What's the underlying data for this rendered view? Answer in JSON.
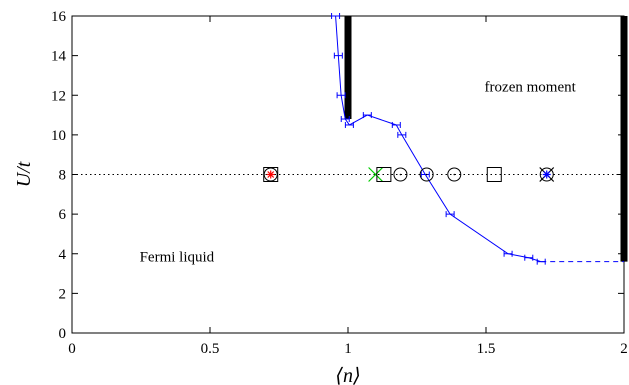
{
  "chart_data": {
    "type": "line",
    "xlabel": "⟨n⟩",
    "ylabel": "U/t",
    "xlim": [
      0,
      2
    ],
    "ylim": [
      0,
      16
    ],
    "xticks": [
      "0",
      "0.5",
      "1",
      "1.5",
      "2"
    ],
    "yticks": [
      "0",
      "2",
      "4",
      "6",
      "8",
      "10",
      "12",
      "14",
      "16"
    ],
    "grid": false,
    "colors": {
      "boundary": "#0000ff",
      "marker_black": "#000000",
      "marker_red": "#ff0000",
      "marker_green": "#00cc00",
      "marker_blue": "#0000ff"
    },
    "annotations": [
      {
        "text": "frozen moment",
        "x": 1.66,
        "y": 12.2
      },
      {
        "text": "Fermi liquid",
        "x": 0.38,
        "y": 3.6
      }
    ],
    "reference_line": {
      "y": 8,
      "style": "dotted"
    },
    "boundary_series": {
      "points": [
        {
          "x": 0.955,
          "y": 16.0
        },
        {
          "x": 0.965,
          "y": 14.0
        },
        {
          "x": 0.975,
          "y": 12.0
        },
        {
          "x": 0.99,
          "y": 10.8
        },
        {
          "x": 1.005,
          "y": 10.5
        },
        {
          "x": 1.07,
          "y": 11.0
        },
        {
          "x": 1.175,
          "y": 10.5
        },
        {
          "x": 1.195,
          "y": 10.0
        },
        {
          "x": 1.28,
          "y": 8.0
        },
        {
          "x": 1.37,
          "y": 6.0
        },
        {
          "x": 1.58,
          "y": 4.0
        },
        {
          "x": 1.655,
          "y": 3.8
        },
        {
          "x": 1.7,
          "y": 3.6
        }
      ],
      "dashed_extension": [
        {
          "x": 1.7,
          "y": 3.6
        },
        {
          "x": 2.0,
          "y": 3.6
        }
      ]
    },
    "thick_boundaries": [
      {
        "x": 1.0,
        "y_from": 10.8,
        "y_to": 16.0
      },
      {
        "x": 2.0,
        "y_from": 3.6,
        "y_to": 16.0
      }
    ],
    "markers": [
      {
        "x": 0.72,
        "y": 8,
        "shape": "square",
        "color": "#000000"
      },
      {
        "x": 0.72,
        "y": 8,
        "shape": "circle",
        "color": "#000000"
      },
      {
        "x": 0.72,
        "y": 8,
        "shape": "star",
        "color": "#ff0000"
      },
      {
        "x": 1.1,
        "y": 8,
        "shape": "cross",
        "color": "#00cc00"
      },
      {
        "x": 1.13,
        "y": 8,
        "shape": "square",
        "color": "#000000"
      },
      {
        "x": 1.19,
        "y": 8,
        "shape": "circle",
        "color": "#000000"
      },
      {
        "x": 1.285,
        "y": 8,
        "shape": "circle",
        "color": "#000000"
      },
      {
        "x": 1.385,
        "y": 8,
        "shape": "circle",
        "color": "#000000"
      },
      {
        "x": 1.53,
        "y": 8,
        "shape": "square",
        "color": "#000000"
      },
      {
        "x": 1.72,
        "y": 8,
        "shape": "circle",
        "color": "#000000"
      },
      {
        "x": 1.72,
        "y": 8,
        "shape": "cross",
        "color": "#000000"
      },
      {
        "x": 1.72,
        "y": 8,
        "shape": "star",
        "color": "#0000ff"
      }
    ]
  }
}
